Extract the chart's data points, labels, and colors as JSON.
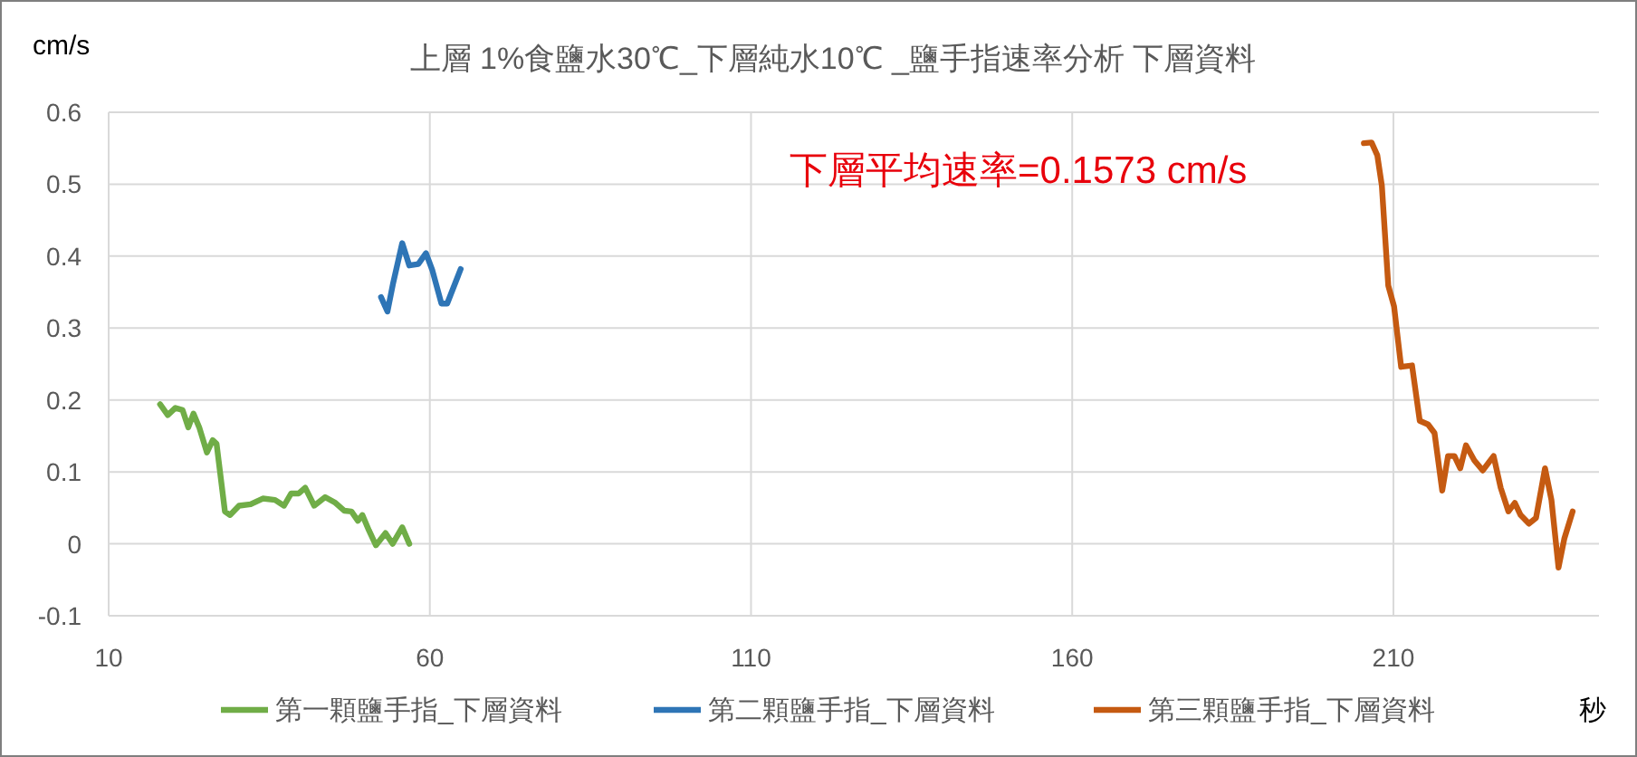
{
  "chart_data": {
    "type": "line",
    "title": "上層 1%食鹽水30℃_下層純水10℃ _鹽手指速率分析 下層資料",
    "xlabel": "秒",
    "ylabel": "cm/s",
    "annotations": [
      "下層平均速率=0.1573 cm/s"
    ],
    "xlim": [
      10,
      242
    ],
    "xticks": [
      10,
      60,
      110,
      160,
      210
    ],
    "ylim": [
      -0.1,
      0.6
    ],
    "yticks": [
      -0.1,
      0,
      0.1,
      0.2,
      0.3,
      0.4,
      0.5,
      0.6
    ],
    "grid": true,
    "legend": "bottom",
    "marker": "none",
    "line_style": "solid",
    "series": [
      {
        "name": "第一顆鹽手指_下層資料",
        "color": "#70ad47",
        "x": [
          18.0,
          19.2,
          20.4,
          21.5,
          22.4,
          23.2,
          24.1,
          25.3,
          26.2,
          26.8,
          28.1,
          28.9,
          30.3,
          32.1,
          34.0,
          35.9,
          37.3,
          38.4,
          39.6,
          40.6,
          42.0,
          43.7,
          45.3,
          46.7,
          47.8,
          48.8,
          49.5,
          50.5,
          51.6,
          53.1,
          54.2,
          55.7,
          56.8
        ],
        "values": [
          0.194,
          0.179,
          0.189,
          0.186,
          0.162,
          0.181,
          0.162,
          0.127,
          0.144,
          0.139,
          0.045,
          0.04,
          0.053,
          0.055,
          0.063,
          0.061,
          0.053,
          0.07,
          0.07,
          0.078,
          0.053,
          0.065,
          0.057,
          0.046,
          0.045,
          0.032,
          0.04,
          0.019,
          -0.002,
          0.015,
          0,
          0.023,
          0
        ]
      },
      {
        "name": "第二顆鹽手指_下層資料",
        "color": "#2e75b6",
        "x": [
          52.4,
          53.4,
          54.3,
          55.7,
          56.8,
          58.2,
          59.4,
          60.4,
          61.8,
          62.7,
          64.8
        ],
        "values": [
          0.343,
          0.323,
          0.363,
          0.418,
          0.387,
          0.389,
          0.404,
          0.38,
          0.334,
          0.334,
          0.382
        ]
      },
      {
        "name": "第三顆鹽手指_下層資料",
        "color": "#c55a11",
        "x": [
          205.4,
          206.6,
          207.5,
          208.2,
          209.2,
          210.1,
          211.2,
          212.9,
          214.1,
          215.4,
          216.4,
          217.6,
          218.5,
          219.5,
          220.4,
          221.3,
          222.6,
          223.9,
          225.6,
          226.7,
          227.9,
          228.9,
          229.8,
          231.1,
          232.2,
          233.6,
          234.6,
          235.7,
          236.6,
          237.9
        ],
        "values": [
          0.557,
          0.558,
          0.54,
          0.498,
          0.359,
          0.33,
          0.246,
          0.248,
          0.171,
          0.166,
          0.154,
          0.074,
          0.122,
          0.122,
          0.105,
          0.137,
          0.116,
          0.102,
          0.122,
          0.078,
          0.045,
          0.057,
          0.04,
          0.028,
          0.036,
          0.105,
          0.061,
          -0.033,
          0.007,
          0.045
        ]
      }
    ]
  }
}
